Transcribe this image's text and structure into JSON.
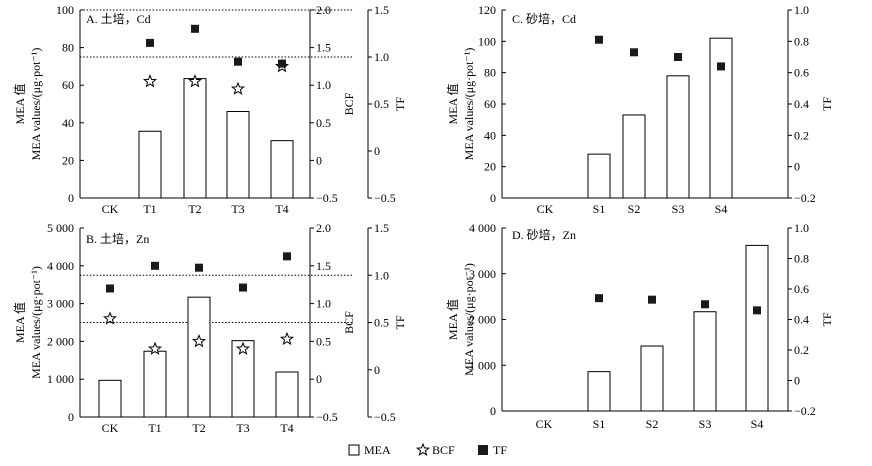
{
  "legend": {
    "mea": "MEA",
    "bcf": "BCF",
    "tf": "TF"
  },
  "chart_data": [
    {
      "type": "bar",
      "title": "A. 土培，Cd",
      "categories": [
        "CK",
        "T1",
        "T2",
        "T3",
        "T4"
      ],
      "ylabel_cn": "MEA 值",
      "ylabel_en": "MEA values/(μg·pot⁻¹)",
      "ylim": [
        0,
        100
      ],
      "yticks": [
        "0",
        "20",
        "40",
        "60",
        "80",
        "100"
      ],
      "bcf_label": "BCF",
      "bcf_lim": [
        -0.5,
        2.0
      ],
      "bcf_ticks": [
        "−0.5",
        "0",
        "0.5",
        "1.0",
        "1.5",
        "2.0"
      ],
      "tf_label": "TF",
      "tf_lim": [
        -0.5,
        1.5
      ],
      "tf_ticks": [
        "−0.5",
        "0",
        "0.5",
        "1.0",
        "1.5"
      ],
      "ref_lines_tf": [
        1.0,
        1.5
      ],
      "series": [
        {
          "name": "MEA",
          "values": [
            0,
            35.5,
            63.5,
            46,
            30.5
          ]
        },
        {
          "name": "BCF",
          "values": [
            null,
            1.05,
            1.05,
            0.95,
            1.25
          ]
        },
        {
          "name": "TF",
          "values": [
            null,
            1.15,
            1.3,
            0.95,
            0.93
          ]
        }
      ]
    },
    {
      "type": "bar",
      "title": "C. 砂培，Cd",
      "categories": [
        "CK",
        "S1",
        "S2",
        "S3",
        "S4"
      ],
      "ylabel_cn": "MEA 值",
      "ylabel_en": "MEA values/(μg·pot⁻¹)",
      "ylim": [
        0,
        120
      ],
      "yticks": [
        "0",
        "20",
        "40",
        "60",
        "80",
        "100",
        "120"
      ],
      "tf_label": "TF",
      "tf_lim": [
        -0.2,
        1.0
      ],
      "tf_ticks": [
        "−0.2",
        "0",
        "0.2",
        "0.4",
        "0.6",
        "0.8",
        "1.0"
      ],
      "series": [
        {
          "name": "MEA",
          "values": [
            0,
            28,
            53,
            78,
            102
          ]
        },
        {
          "name": "TF",
          "values": [
            null,
            0.81,
            0.73,
            0.7,
            0.64
          ]
        }
      ]
    },
    {
      "type": "bar",
      "title": "B. 土培，Zn",
      "categories": [
        "CK",
        "T1",
        "T2",
        "T3",
        "T4"
      ],
      "ylabel_cn": "MEA 值",
      "ylabel_en": "MEA values/(μg·pot⁻¹)",
      "ylim": [
        0,
        5000
      ],
      "yticks": [
        "0",
        "1 000",
        "2 000",
        "3 000",
        "4 000",
        "5 000"
      ],
      "bcf_label": "BCF",
      "bcf_lim": [
        -0.5,
        2.0
      ],
      "bcf_ticks": [
        "−0.5",
        "0",
        "0.5",
        "1.0",
        "1.5",
        "2.0"
      ],
      "tf_label": "TF",
      "tf_lim": [
        -0.5,
        1.5
      ],
      "tf_ticks": [
        "−0.5",
        "0",
        "0.5",
        "1.0",
        "1.5"
      ],
      "ref_lines_tf": [
        0.5,
        1.0
      ],
      "series": [
        {
          "name": "MEA",
          "values": [
            970,
            1740,
            3170,
            2020,
            1190
          ]
        },
        {
          "name": "BCF",
          "values": [
            0.8,
            0.4,
            0.5,
            0.4,
            0.53
          ]
        },
        {
          "name": "TF",
          "values": [
            0.86,
            1.1,
            1.08,
            0.87,
            1.2
          ]
        }
      ]
    },
    {
      "type": "bar",
      "title": "D. 砂培，Zn",
      "categories": [
        "CK",
        "S1",
        "S2",
        "S3",
        "S4"
      ],
      "ylabel_cn": "MEA 值",
      "ylabel_en": "MEA values/(μg·pot⁻¹)",
      "ylim": [
        0,
        4000
      ],
      "yticks": [
        "0",
        "1 000",
        "2 000",
        "3 000",
        "4 000"
      ],
      "tf_label": "TF",
      "tf_lim": [
        -0.2,
        1.0
      ],
      "tf_ticks": [
        "−0.2",
        "0",
        "0.2",
        "0.4",
        "0.6",
        "0.8",
        "1.0"
      ],
      "series": [
        {
          "name": "MEA",
          "values": [
            0,
            860,
            1420,
            2170,
            3620
          ]
        },
        {
          "name": "TF",
          "values": [
            null,
            0.54,
            0.53,
            0.5,
            0.46
          ]
        }
      ]
    }
  ]
}
